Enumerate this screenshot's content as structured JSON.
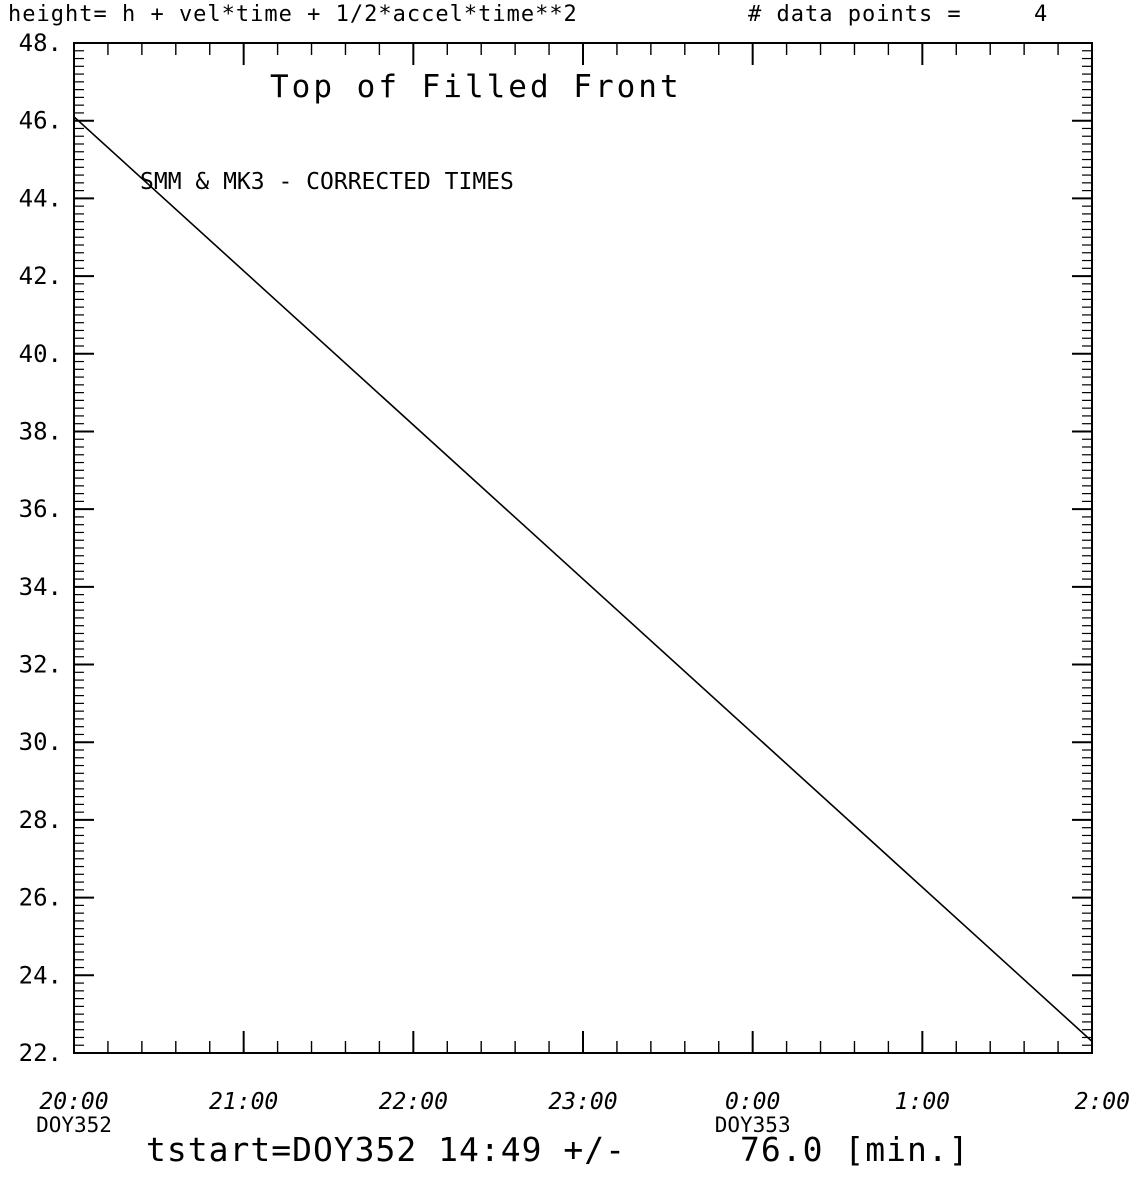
{
  "header": {
    "formula": "height= h + vel*time + 1/2*accel*time**2",
    "data_points_label": "# data points =",
    "data_points_value": "4"
  },
  "footer": {
    "tstart": "tstart=DOY352 14:49 +/-",
    "uncertainty": "76.0 [min.]"
  },
  "chart_data": {
    "type": "line",
    "title": "Top of Filled Front",
    "annotation": "SMM & MK3 - CORRECTED TIMES",
    "xlabel": "",
    "ylabel": "",
    "x_axis": {
      "range_hours": [
        20,
        26
      ],
      "ticks": [
        {
          "value": 20,
          "label": "20:00",
          "sublabel": "DOY352"
        },
        {
          "value": 21,
          "label": "21:00",
          "sublabel": ""
        },
        {
          "value": 22,
          "label": "22:00",
          "sublabel": ""
        },
        {
          "value": 23,
          "label": "23:00",
          "sublabel": ""
        },
        {
          "value": 24,
          "label": "0:00",
          "sublabel": "DOY353"
        },
        {
          "value": 25,
          "label": "1:00",
          "sublabel": ""
        },
        {
          "value": 26,
          "label": "2:00",
          "sublabel": ""
        }
      ]
    },
    "y_axis": {
      "range": [
        22,
        48
      ],
      "ticks": [
        {
          "value": 22,
          "label": "22."
        },
        {
          "value": 24,
          "label": "24."
        },
        {
          "value": 26,
          "label": "26."
        },
        {
          "value": 28,
          "label": "28."
        },
        {
          "value": 30,
          "label": "30."
        },
        {
          "value": 32,
          "label": "32."
        },
        {
          "value": 34,
          "label": "34."
        },
        {
          "value": 36,
          "label": "36."
        },
        {
          "value": 38,
          "label": "38."
        },
        {
          "value": 40,
          "label": "40."
        },
        {
          "value": 42,
          "label": "42."
        },
        {
          "value": 44,
          "label": "44."
        },
        {
          "value": 46,
          "label": "46."
        },
        {
          "value": 48,
          "label": "48."
        }
      ]
    },
    "series": [
      {
        "points": [
          {
            "x": 20.0,
            "y": 46.1
          },
          {
            "x": 26.0,
            "y": 22.3
          }
        ]
      }
    ],
    "grid": false
  }
}
